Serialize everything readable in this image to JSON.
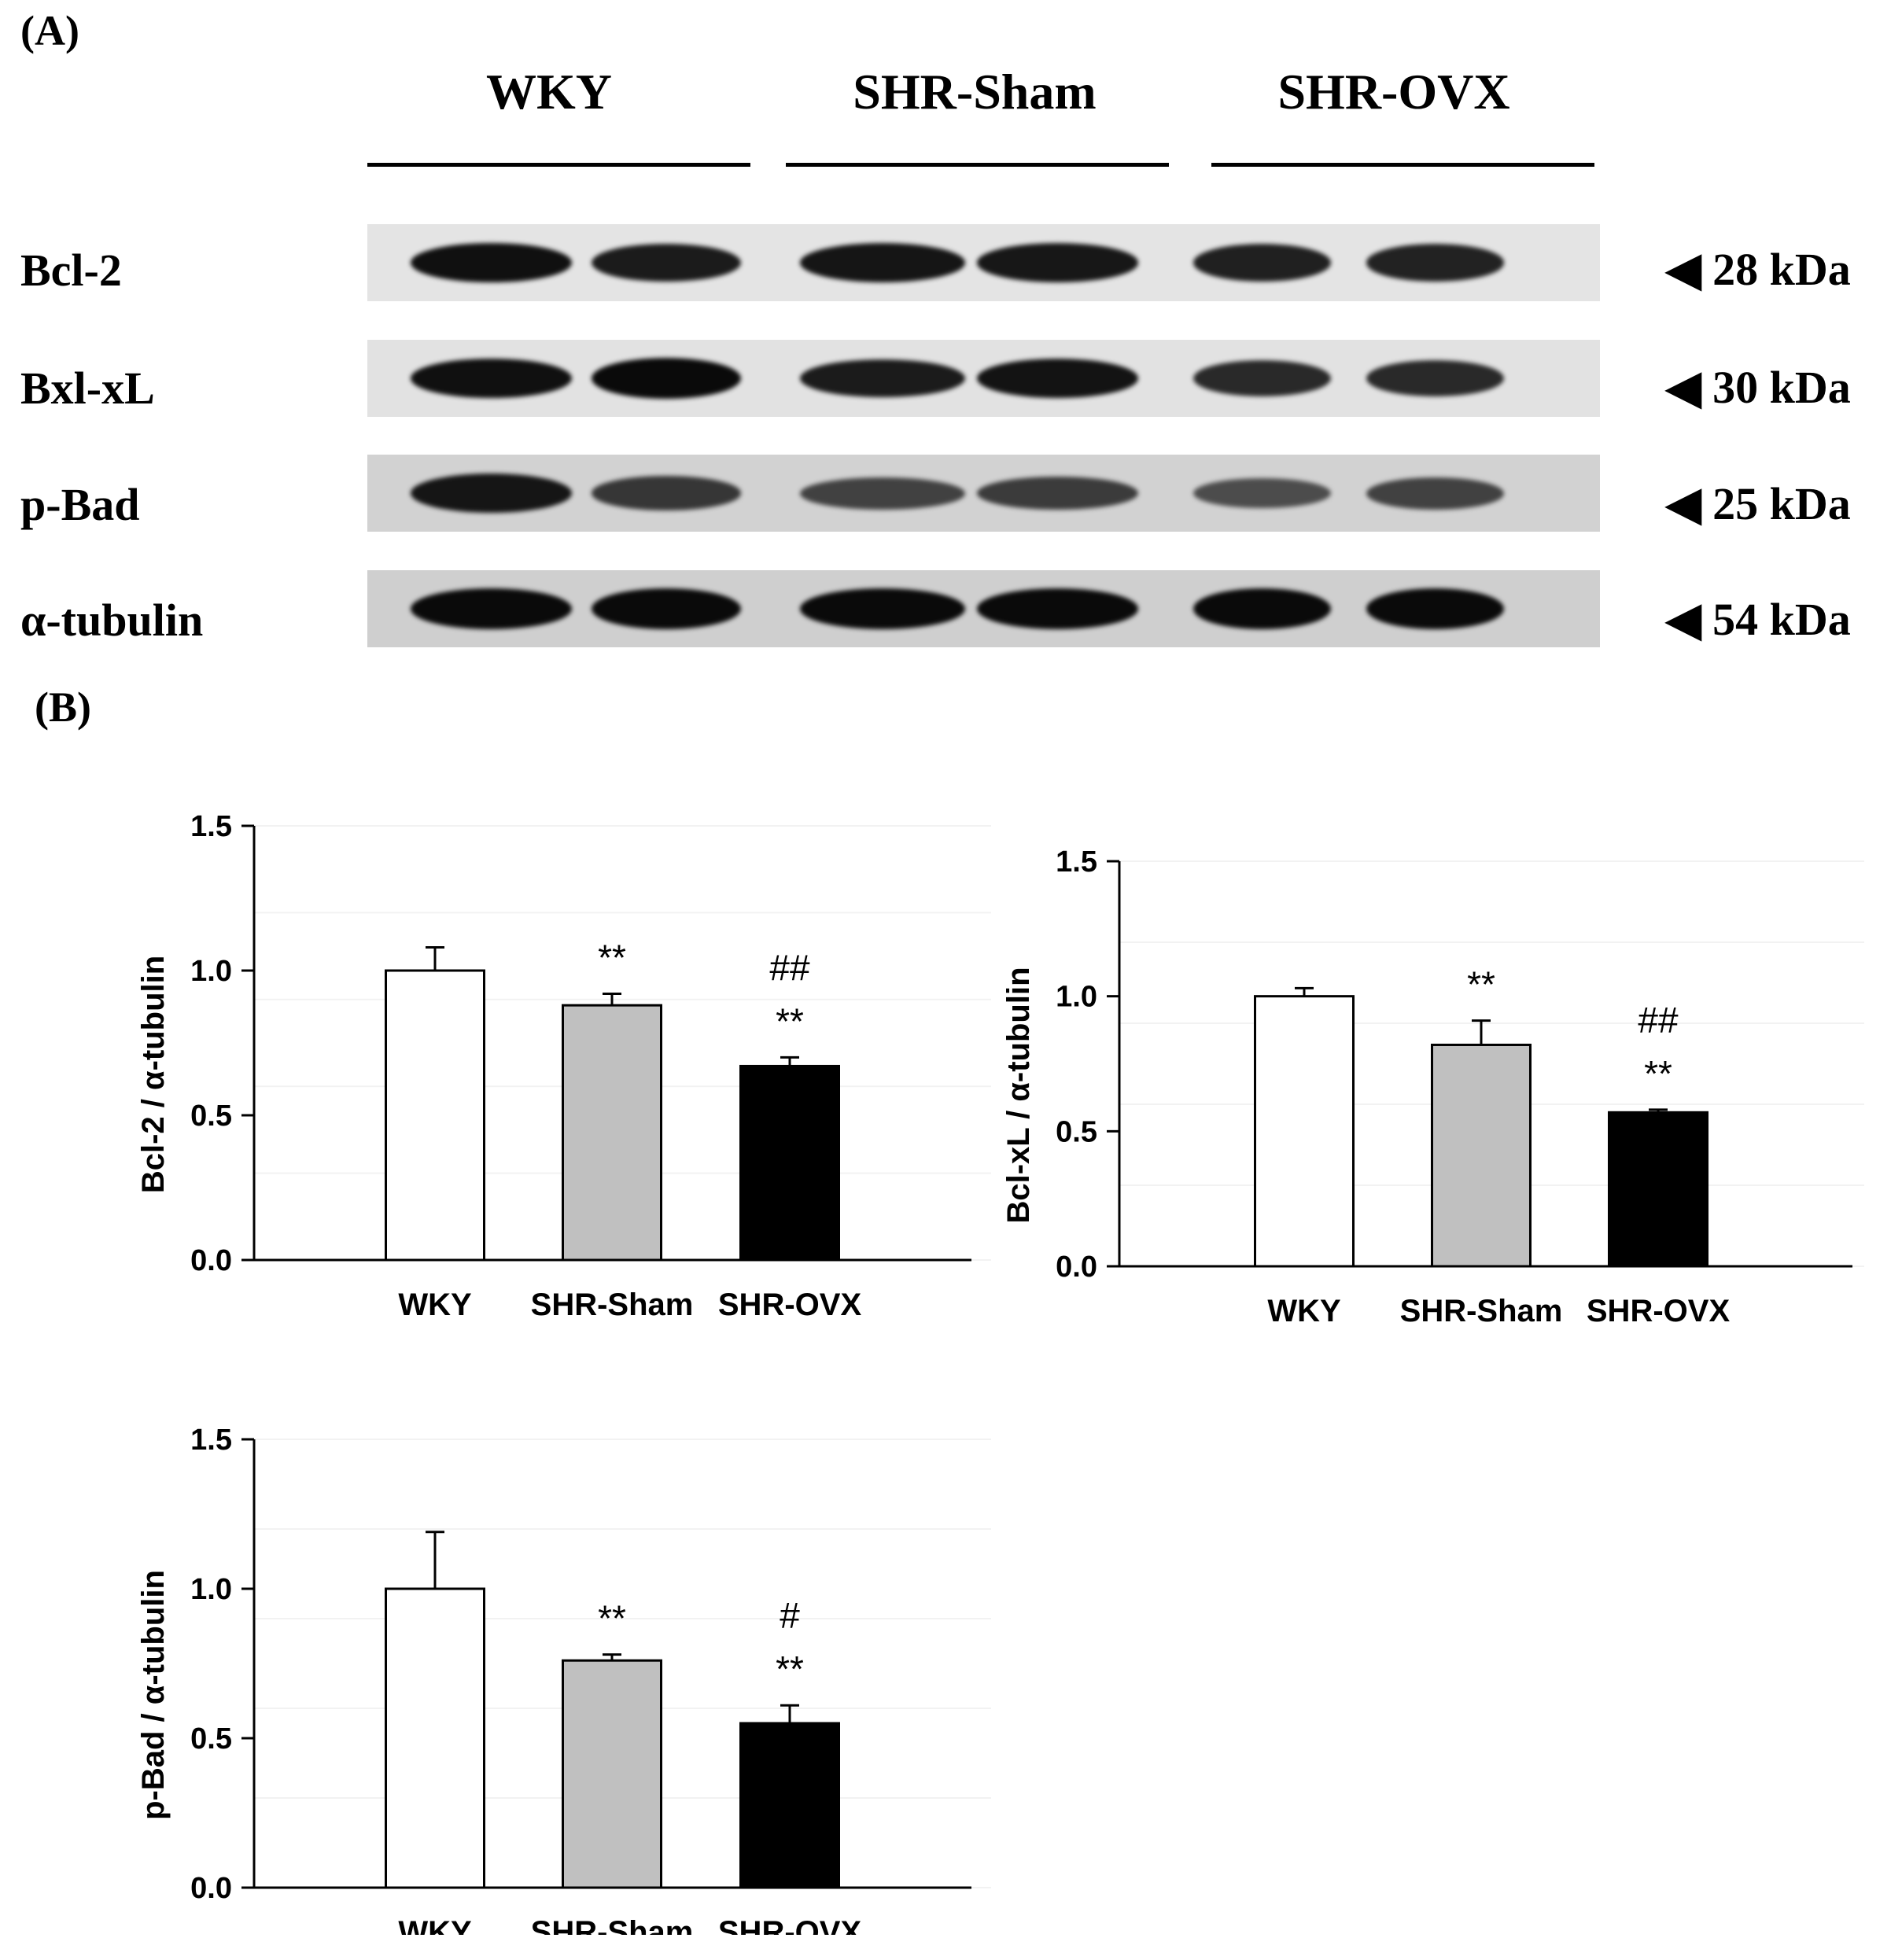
{
  "panel_a": {
    "label": "(A)",
    "groups": [
      "WKY",
      "SHR-Sham",
      "SHR-OVX"
    ],
    "blots": [
      {
        "protein": "Bcl-2",
        "mw": "28 kDa",
        "arrow": "◀",
        "background": "#e4e4e4",
        "band_intensity": [
          0.95,
          0.85,
          0.9,
          0.88,
          0.8,
          0.78
        ]
      },
      {
        "protein": "Bxl-xL",
        "mw": "30 kDa",
        "arrow": "◀",
        "background": "#e2e2e2",
        "band_intensity": [
          0.95,
          1.0,
          0.85,
          0.92,
          0.72,
          0.72
        ]
      },
      {
        "protein": "p-Bad",
        "mw": "25 kDa",
        "arrow": "◀",
        "background": "#d2d2d2",
        "band_intensity": [
          0.9,
          0.6,
          0.5,
          0.55,
          0.4,
          0.5
        ]
      },
      {
        "protein": "α-tubulin",
        "mw": "54 kDa",
        "arrow": "◀",
        "background": "#cfcfcf",
        "band_intensity": [
          1.0,
          1.0,
          1.0,
          1.0,
          1.0,
          1.0
        ]
      }
    ]
  },
  "panel_b": {
    "label": "(B)"
  },
  "chart_data": [
    {
      "type": "bar",
      "categories": [
        "WKY",
        "SHR-Sham",
        "SHR-OVX"
      ],
      "values": [
        1.0,
        0.88,
        0.67
      ],
      "errors": [
        0.08,
        0.04,
        0.03
      ],
      "annotations": [
        [],
        [
          "**"
        ],
        [
          "**",
          "##"
        ]
      ],
      "ylabel": "Bcl-2 / α-tubulin",
      "xlabel": "",
      "ylim": [
        0,
        1.5
      ],
      "yticks": [
        "0.0",
        "0.5",
        "1.0",
        "1.5"
      ],
      "bar_colors": [
        "#ffffff",
        "#c0c0c0",
        "#000000"
      ]
    },
    {
      "type": "bar",
      "categories": [
        "WKY",
        "SHR-Sham",
        "SHR-OVX"
      ],
      "values": [
        1.0,
        0.82,
        0.57
      ],
      "errors": [
        0.03,
        0.09,
        0.01
      ],
      "annotations": [
        [],
        [
          "**"
        ],
        [
          "**",
          "##"
        ]
      ],
      "ylabel": "Bcl-xL / α-tubulin",
      "xlabel": "",
      "ylim": [
        0,
        1.5
      ],
      "yticks": [
        "0.0",
        "0.5",
        "1.0",
        "1.5"
      ],
      "bar_colors": [
        "#ffffff",
        "#c0c0c0",
        "#000000"
      ]
    },
    {
      "type": "bar",
      "categories": [
        "WKY",
        "SHR-Sham",
        "SHR-OVX"
      ],
      "values": [
        1.0,
        0.76,
        0.55
      ],
      "errors": [
        0.19,
        0.02,
        0.06
      ],
      "annotations": [
        [],
        [
          "**"
        ],
        [
          "**",
          "#"
        ]
      ],
      "ylabel": "p-Bad / α-tubulin",
      "xlabel": "",
      "ylim": [
        0,
        1.5
      ],
      "yticks": [
        "0.0",
        "0.5",
        "1.0",
        "1.5"
      ],
      "bar_colors": [
        "#ffffff",
        "#c0c0c0",
        "#000000"
      ]
    }
  ]
}
